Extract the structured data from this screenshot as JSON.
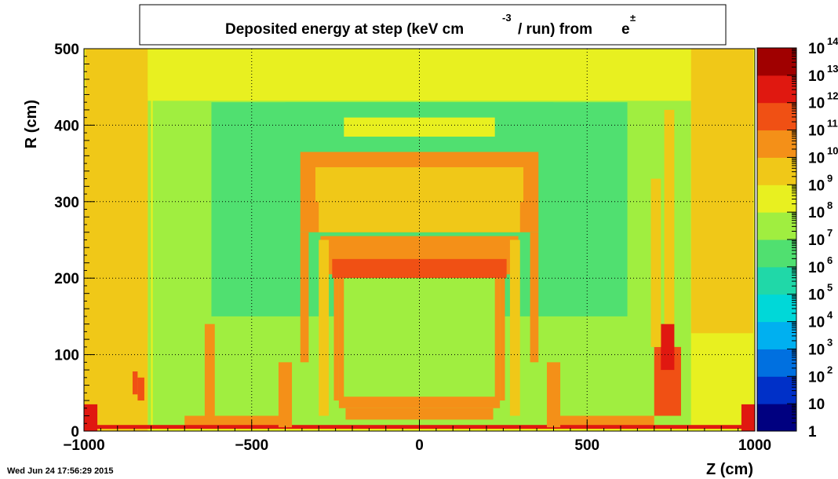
{
  "chart_data": {
    "type": "heatmap",
    "title_parts": {
      "main": "Deposited energy at step (keV cm",
      "exp": "-3",
      "rest": "/ run)  from",
      "particle": "e",
      "particle_sup": "±"
    },
    "xlabel": "Z (cm)",
    "ylabel": "R (cm)",
    "xlim": [
      -1000,
      1000
    ],
    "ylim": [
      0,
      500
    ],
    "x_ticks": [
      -1000,
      -500,
      0,
      500,
      1000
    ],
    "y_ticks": [
      0,
      100,
      200,
      300,
      400,
      500
    ],
    "grid": true,
    "colorbar": {
      "scale": "log",
      "range": [
        1,
        100000000000000.0
      ],
      "labels": [
        {
          "base": "1",
          "exp": ""
        },
        {
          "base": "10",
          "exp": ""
        },
        {
          "base": "10",
          "exp": "2"
        },
        {
          "base": "10",
          "exp": "3"
        },
        {
          "base": "10",
          "exp": "4"
        },
        {
          "base": "10",
          "exp": "5"
        },
        {
          "base": "10",
          "exp": "6"
        },
        {
          "base": "10",
          "exp": "7"
        },
        {
          "base": "10",
          "exp": "8"
        },
        {
          "base": "10",
          "exp": "9"
        },
        {
          "base": "10",
          "exp": "10"
        },
        {
          "base": "10",
          "exp": "11"
        },
        {
          "base": "10",
          "exp": "12"
        },
        {
          "base": "10",
          "exp": "13"
        },
        {
          "base": "10",
          "exp": "14"
        }
      ],
      "colors": [
        "#000080",
        "#0030c8",
        "#0070e0",
        "#00b0f0",
        "#00d8d8",
        "#20d8a8",
        "#50e070",
        "#a0ee40",
        "#e8f020",
        "#f0c818",
        "#f49018",
        "#f05014",
        "#e01810",
        "#a00000"
      ]
    },
    "regions": [
      {
        "z": [
          -1000,
          1000
        ],
        "r": [
          0,
          500
        ],
        "log10": 8.3
      },
      {
        "z": [
          -810,
          810
        ],
        "r": [
          5,
          432
        ],
        "log10": 7.5
      },
      {
        "z": [
          -1000,
          -810
        ],
        "r": [
          432,
          500
        ],
        "log10": 8.8
      },
      {
        "z": [
          -1000,
          -810
        ],
        "r": [
          0,
          432
        ],
        "log10": 8.6
      },
      {
        "z": [
          810,
          1000
        ],
        "r": [
          0,
          432
        ],
        "log10": 8.6
      },
      {
        "z": [
          -810,
          810
        ],
        "r": [
          432,
          500
        ],
        "log10": 8.9
      },
      {
        "z": [
          -795,
          -800
        ],
        "r": [
          0,
          500
        ],
        "log10": 8.9
      },
      {
        "z": [
          -1000,
          -810
        ],
        "r": [
          0,
          438
        ],
        "log10": 9.0
      },
      {
        "z": [
          -995,
          -810
        ],
        "r": [
          128,
          500
        ],
        "log10": 9.9
      },
      {
        "z": [
          810,
          995
        ],
        "r": [
          128,
          500
        ],
        "log10": 9.9
      },
      {
        "z": [
          -995,
          -970
        ],
        "r": [
          270,
          500
        ],
        "log10": 9.3
      },
      {
        "z": [
          970,
          995
        ],
        "r": [
          270,
          500
        ],
        "log10": 9.3
      },
      {
        "z": [
          -320,
          340
        ],
        "r": [
          470,
          490
        ],
        "log10": 8.7
      },
      {
        "z": [
          -620,
          620
        ],
        "r": [
          150,
          430
        ],
        "log10": 6.9
      },
      {
        "z": [
          -400,
          400
        ],
        "r": [
          390,
          430
        ],
        "log10": 6.6
      },
      {
        "z": [
          -225,
          225
        ],
        "r": [
          385,
          410
        ],
        "log10": 8.2
      },
      {
        "z": [
          -355,
          355
        ],
        "r": [
          260,
          365
        ],
        "log10": 10.3
      },
      {
        "z": [
          -310,
          310
        ],
        "r": [
          300,
          345
        ],
        "log10": 9.6
      },
      {
        "z": [
          -300,
          300
        ],
        "r": [
          260,
          300
        ],
        "log10": 9.2
      },
      {
        "z": [
          -355,
          -330
        ],
        "r": [
          90,
          260
        ],
        "log10": 10.4
      },
      {
        "z": [
          330,
          355
        ],
        "r": [
          90,
          260
        ],
        "log10": 10.4
      },
      {
        "z": [
          -295,
          295
        ],
        "r": [
          205,
          255
        ],
        "log10": 10.9
      },
      {
        "z": [
          -260,
          260
        ],
        "r": [
          200,
          225
        ],
        "log10": 11.3
      },
      {
        "z": [
          -250,
          250
        ],
        "r": [
          30,
          200
        ],
        "log10": 7.6
      },
      {
        "z": [
          -255,
          -240
        ],
        "r": [
          40,
          200
        ],
        "log10": 10.2
      },
      {
        "z": [
          -240,
          -225
        ],
        "r": [
          40,
          200
        ],
        "log10": 10.5
      },
      {
        "z": [
          225,
          240
        ],
        "r": [
          40,
          200
        ],
        "log10": 10.5
      },
      {
        "z": [
          240,
          255
        ],
        "r": [
          40,
          200
        ],
        "log10": 10.2
      },
      {
        "z": [
          -300,
          -270
        ],
        "r": [
          20,
          250
        ],
        "log10": 9.8
      },
      {
        "z": [
          270,
          300
        ],
        "r": [
          20,
          250
        ],
        "log10": 9.8
      },
      {
        "z": [
          -240,
          240
        ],
        "r": [
          30,
          45
        ],
        "log10": 10.2
      },
      {
        "z": [
          -220,
          220
        ],
        "r": [
          15,
          30
        ],
        "log10": 10.6
      },
      {
        "z": [
          -700,
          -400
        ],
        "r": [
          5,
          20
        ],
        "log10": 10.8
      },
      {
        "z": [
          400,
          700
        ],
        "r": [
          5,
          20
        ],
        "log10": 10.8
      },
      {
        "z": [
          -1000,
          -960
        ],
        "r": [
          0,
          35
        ],
        "log10": 12.4
      },
      {
        "z": [
          960,
          1000
        ],
        "r": [
          0,
          35
        ],
        "log10": 12.4
      },
      {
        "z": [
          -1000,
          1000
        ],
        "r": [
          3,
          8
        ],
        "log10": 12.9
      },
      {
        "z": [
          -840,
          -820
        ],
        "r": [
          40,
          70
        ],
        "log10": 11.2
      },
      {
        "z": [
          -855,
          -840
        ],
        "r": [
          48,
          78
        ],
        "log10": 11.6
      },
      {
        "z": [
          700,
          780
        ],
        "r": [
          20,
          110
        ],
        "log10": 11.5
      },
      {
        "z": [
          720,
          760
        ],
        "r": [
          80,
          140
        ],
        "log10": 12.0
      },
      {
        "z": [
          690,
          720
        ],
        "r": [
          110,
          330
        ],
        "log10": 9.8
      },
      {
        "z": [
          730,
          760
        ],
        "r": [
          140,
          420
        ],
        "log10": 9.9
      },
      {
        "z": [
          -640,
          -610
        ],
        "r": [
          20,
          140
        ],
        "log10": 10.1
      },
      {
        "z": [
          -420,
          -380
        ],
        "r": [
          5,
          90
        ],
        "log10": 10.3
      },
      {
        "z": [
          380,
          420
        ],
        "r": [
          5,
          90
        ],
        "log10": 10.3
      }
    ]
  },
  "footer": {
    "timestamp": "Wed Jun 24 17:56:29 2015"
  },
  "colors": {
    "background": "#ffffff",
    "axis": "#000000",
    "grid": "#000000"
  }
}
